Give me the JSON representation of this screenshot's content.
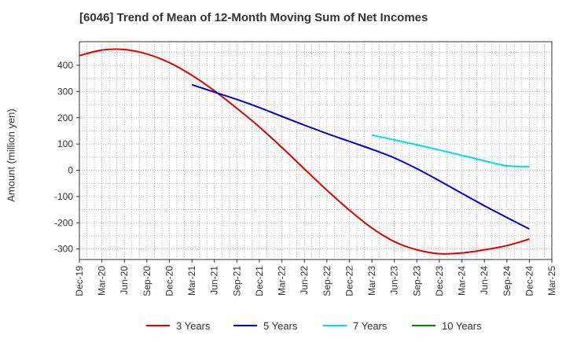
{
  "chart_data": {
    "type": "line",
    "title": "[6046]  Trend of Mean of 12-Month Moving Sum of Net Incomes",
    "ylabel": "Amount (million yen)",
    "xlabel": "",
    "ylim": [
      -340,
      490
    ],
    "yticks": [
      -300,
      -200,
      -100,
      0,
      100,
      200,
      300,
      400
    ],
    "categories": [
      "Dec-19",
      "Mar-20",
      "Jun-20",
      "Sep-20",
      "Dec-20",
      "Mar-21",
      "Jun-21",
      "Sep-21",
      "Dec-21",
      "Mar-22",
      "Jun-22",
      "Sep-22",
      "Dec-22",
      "Mar-23",
      "Jun-23",
      "Sep-23",
      "Dec-23",
      "Mar-24",
      "Jun-24",
      "Sep-24",
      "Dec-24",
      "Mar-25"
    ],
    "grid": true,
    "legend_position": "bottom",
    "series": [
      {
        "name": "3 Years",
        "color": "#dd0000",
        "values": [
          437,
          458,
          460,
          443,
          410,
          362,
          303,
          236,
          165,
          87,
          5,
          -76,
          -152,
          -220,
          -272,
          -303,
          -318,
          -315,
          -303,
          -287,
          -262,
          null
        ]
      },
      {
        "name": "5 Years",
        "color": "#0000cc",
        "values": [
          null,
          null,
          null,
          null,
          null,
          326,
          298,
          270,
          239,
          205,
          172,
          140,
          110,
          80,
          47,
          6,
          -40,
          -88,
          -135,
          -180,
          -224,
          null
        ]
      },
      {
        "name": "7 Years",
        "color": "#00dddd",
        "values": [
          null,
          null,
          null,
          null,
          null,
          null,
          null,
          null,
          null,
          null,
          null,
          null,
          null,
          134,
          116,
          97,
          77,
          57,
          36,
          17,
          14,
          null
        ]
      },
      {
        "name": "10 Years",
        "color": "#008800",
        "values": [
          null,
          null,
          null,
          null,
          null,
          null,
          null,
          null,
          null,
          null,
          null,
          null,
          null,
          null,
          null,
          null,
          null,
          null,
          null,
          null,
          null,
          null
        ]
      }
    ]
  }
}
